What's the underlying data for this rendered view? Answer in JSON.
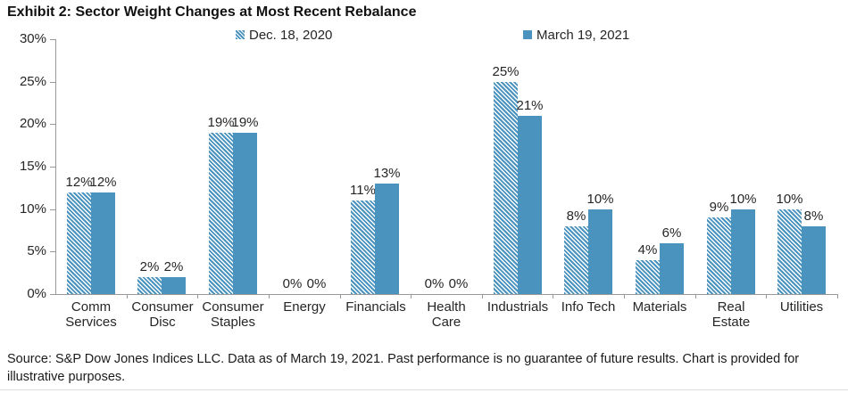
{
  "title": "Exhibit 2: Sector Weight Changes at Most Recent Rebalance",
  "source_note": "Source: S&P Dow Jones Indices LLC. Data as of March 19, 2021. Past performance is no guarantee of future results. Chart is provided for illustrative purposes.",
  "colors": {
    "bar_blue": "#4A93BE",
    "axis_gray": "#999999",
    "text_dark": "#262626"
  },
  "chart_data": {
    "type": "bar",
    "title": "Exhibit 2: Sector Weight Changes at Most Recent Rebalance",
    "categories": [
      "Comm\nServices",
      "Consumer\nDisc",
      "Consumer\nStaples",
      "Energy",
      "Financials",
      "Health\nCare",
      "Industrials",
      "Info Tech",
      "Materials",
      "Real\nEstate",
      "Utilities"
    ],
    "series": [
      {
        "name": "Dec. 18, 2020",
        "marker": "hatched",
        "values": [
          12,
          2,
          19,
          0,
          11,
          0,
          25,
          8,
          4,
          9,
          10
        ],
        "value_labels": [
          "12%",
          "2%",
          "19%",
          "0%",
          "11%",
          "0%",
          "25%",
          "8%",
          "4%",
          "9%",
          "10%"
        ]
      },
      {
        "name": "March 19, 2021",
        "marker": "solid",
        "values": [
          12,
          2,
          19,
          0,
          13,
          0,
          21,
          10,
          6,
          10,
          8
        ],
        "value_labels": [
          "12%",
          "2%",
          "19%",
          "0%",
          "13%",
          "0%",
          "21%",
          "10%",
          "6%",
          "10%",
          "8%"
        ]
      }
    ],
    "xlabel": "",
    "ylabel": "",
    "ylim": [
      0,
      30
    ],
    "yticks": [
      0,
      5,
      10,
      15,
      20,
      25,
      30
    ],
    "ytick_labels": [
      "0%",
      "5%",
      "10%",
      "15%",
      "20%",
      "25%",
      "30%"
    ],
    "grid": false,
    "legend_position": "top"
  }
}
